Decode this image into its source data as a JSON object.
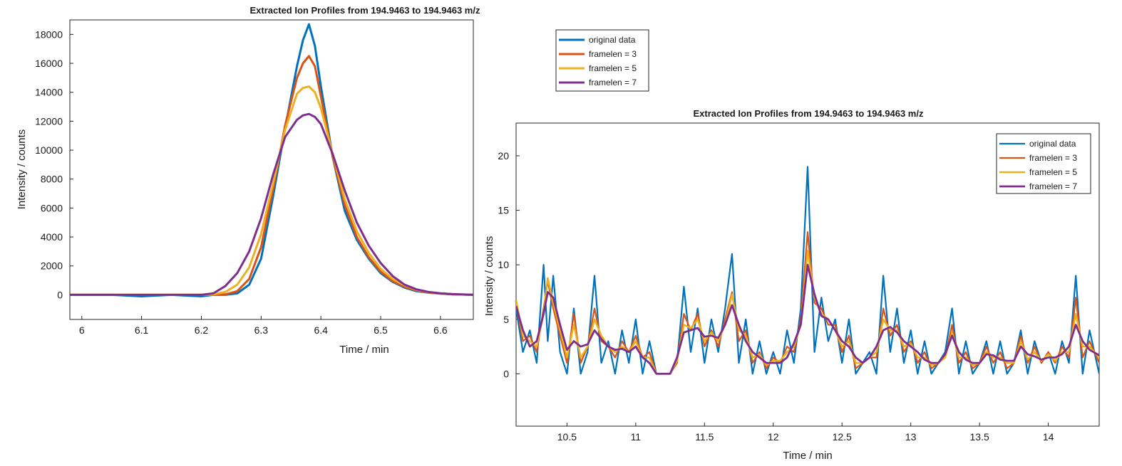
{
  "chart_data": [
    {
      "type": "line",
      "title": "Extracted Ion Profiles from 194.9463 to 194.9463 m/z",
      "xlabel": "Time / min",
      "ylabel": "Intensity / counts",
      "xlim": [
        5.98,
        6.655
      ],
      "ylim": [
        -1700,
        19000
      ],
      "xticks": [
        6,
        6.1,
        6.2,
        6.3,
        6.4,
        6.5,
        6.6
      ],
      "xtick_labels": [
        "6",
        "6.1",
        "6.2",
        "6.3",
        "6.4",
        "6.5",
        "6.6"
      ],
      "yticks": [
        0,
        2000,
        4000,
        6000,
        8000,
        10000,
        12000,
        14000,
        16000,
        18000
      ],
      "ytick_labels": [
        "0",
        "2000",
        "4000",
        "6000",
        "8000",
        "10000",
        "12000",
        "14000",
        "16000",
        "18000"
      ],
      "grid": false,
      "legend_position": "top-right",
      "x": [
        5.98,
        6.0,
        6.05,
        6.1,
        6.15,
        6.2,
        6.22,
        6.24,
        6.26,
        6.28,
        6.3,
        6.32,
        6.34,
        6.36,
        6.37,
        6.38,
        6.39,
        6.4,
        6.42,
        6.44,
        6.46,
        6.48,
        6.5,
        6.52,
        6.54,
        6.56,
        6.58,
        6.6,
        6.62,
        6.655
      ],
      "series": [
        {
          "name": "original data",
          "color": "#0072BD",
          "values": [
            0,
            0,
            0,
            -100,
            0,
            -100,
            0,
            0,
            100,
            700,
            2500,
            6800,
            11500,
            15800,
            17600,
            18700,
            17200,
            14400,
            9500,
            5800,
            3800,
            2500,
            1500,
            900,
            500,
            250,
            150,
            80,
            30,
            0
          ]
        },
        {
          "name": "framelen = 3",
          "color": "#D95319",
          "values": [
            0,
            0,
            0,
            0,
            0,
            0,
            0,
            30,
            250,
            1100,
            3300,
            7300,
            11700,
            15000,
            16000,
            16500,
            15800,
            13700,
            9500,
            6200,
            4000,
            2600,
            1600,
            950,
            550,
            300,
            160,
            90,
            40,
            0
          ]
        },
        {
          "name": "framelen = 5",
          "color": "#EDB120",
          "values": [
            0,
            0,
            0,
            0,
            0,
            0,
            30,
            200,
            700,
            1900,
            4200,
            7700,
            11400,
            13900,
            14300,
            14400,
            14000,
            12900,
            9700,
            6600,
            4400,
            2900,
            1800,
            1100,
            650,
            350,
            180,
            100,
            50,
            0
          ]
        },
        {
          "name": "framelen = 7",
          "color": "#7E2F8E",
          "values": [
            0,
            0,
            0,
            0,
            0,
            0,
            100,
            600,
            1500,
            3000,
            5300,
            8300,
            10900,
            12100,
            12400,
            12500,
            12300,
            11800,
            9700,
            7200,
            5000,
            3400,
            2200,
            1300,
            700,
            380,
            200,
            110,
            50,
            0
          ]
        }
      ]
    },
    {
      "type": "line",
      "title": "Extracted Ion Profiles from 194.9463 to 194.9463 m/z",
      "xlabel": "Time / min",
      "ylabel": "Intensity / counts",
      "xlim": [
        10.13,
        14.37
      ],
      "ylim": [
        -4.8,
        23
      ],
      "xticks": [
        10.5,
        11,
        11.5,
        12,
        12.5,
        13,
        13.5,
        14
      ],
      "xtick_labels": [
        "10.5",
        "11",
        "11.5",
        "12",
        "12.5",
        "13",
        "13.5",
        "14"
      ],
      "yticks": [
        0,
        5,
        10,
        15,
        20
      ],
      "ytick_labels": [
        "0",
        "5",
        "10",
        "15",
        "20"
      ],
      "grid": false,
      "legend_position": "top-right",
      "x": [
        10.13,
        10.18,
        10.23,
        10.28,
        10.33,
        10.36,
        10.4,
        10.45,
        10.5,
        10.55,
        10.6,
        10.65,
        10.7,
        10.75,
        10.8,
        10.85,
        10.9,
        10.95,
        11.0,
        11.05,
        11.1,
        11.15,
        11.2,
        11.25,
        11.3,
        11.35,
        11.4,
        11.45,
        11.5,
        11.55,
        11.6,
        11.65,
        11.7,
        11.75,
        11.8,
        11.85,
        11.9,
        11.95,
        12.0,
        12.05,
        12.1,
        12.15,
        12.2,
        12.25,
        12.3,
        12.35,
        12.4,
        12.45,
        12.5,
        12.55,
        12.6,
        12.65,
        12.7,
        12.75,
        12.8,
        12.85,
        12.9,
        12.95,
        13.0,
        13.05,
        13.1,
        13.15,
        13.2,
        13.25,
        13.3,
        13.35,
        13.4,
        13.45,
        13.5,
        13.55,
        13.6,
        13.65,
        13.7,
        13.75,
        13.8,
        13.85,
        13.9,
        13.95,
        14.0,
        14.05,
        14.1,
        14.15,
        14.2,
        14.25,
        14.3,
        14.37
      ],
      "series": [
        {
          "name": "original data",
          "color": "#0072BD",
          "values": [
            6,
            2,
            4,
            1,
            10,
            3,
            9,
            2,
            0,
            6,
            0,
            2,
            9,
            1,
            3,
            0,
            4,
            1,
            5,
            0,
            3,
            0,
            0,
            0,
            1,
            8,
            2,
            6,
            1,
            5,
            2,
            6,
            11,
            1,
            5,
            0,
            3,
            0,
            2,
            0,
            4,
            1,
            6,
            19,
            2,
            7,
            3,
            5,
            1,
            5,
            0,
            1,
            2,
            0,
            9,
            2,
            6,
            1,
            4,
            0,
            3,
            0,
            1,
            2,
            6,
            0,
            3,
            0,
            1,
            3,
            0,
            3,
            0,
            1,
            4,
            0,
            3,
            1,
            2,
            0,
            3,
            1,
            9,
            0,
            4,
            0
          ]
        },
        {
          "name": "framelen = 3",
          "color": "#D95319",
          "values": [
            6.5,
            3,
            3.5,
            2,
            6,
            8.5,
            6,
            3.5,
            1,
            5.5,
            1,
            2.5,
            6,
            3,
            2.5,
            1.5,
            3,
            2,
            3.5,
            1.5,
            2,
            0,
            0,
            0,
            1,
            5.5,
            4,
            5.5,
            2.5,
            4,
            2.5,
            5,
            7.5,
            3,
            4,
            1,
            2,
            0.5,
            1.5,
            1,
            2.5,
            2,
            5,
            13,
            6.5,
            6,
            4.5,
            4.5,
            2,
            3.5,
            0.5,
            1,
            1.5,
            1.5,
            6,
            3.5,
            4.5,
            2,
            3,
            1,
            2,
            0.5,
            1,
            1.5,
            4.5,
            1,
            2,
            0.5,
            1,
            2.5,
            1,
            2,
            0.5,
            1,
            3.5,
            1,
            2.5,
            1,
            2,
            1,
            2.5,
            1.5,
            7,
            1.5,
            3,
            1
          ]
        },
        {
          "name": "framelen = 5",
          "color": "#EDB120",
          "values": [
            6.8,
            3.5,
            3,
            2.5,
            5.5,
            8.8,
            6.5,
            4,
            1.5,
            4.5,
            1.5,
            2.5,
            5,
            3.5,
            2.5,
            2,
            2.5,
            2,
            3,
            1.5,
            1.5,
            0,
            0,
            0,
            1.2,
            4.5,
            4.2,
            5,
            3,
            3.8,
            3,
            4.5,
            7.3,
            4,
            3.5,
            1.5,
            1.8,
            0.8,
            1.2,
            1.2,
            2,
            2.5,
            4.5,
            11.3,
            7,
            5.5,
            5,
            4,
            2.5,
            3,
            1,
            1,
            1.5,
            2,
            5,
            4,
            4,
            2.5,
            2.8,
            1.5,
            1.5,
            0.8,
            1,
            1.5,
            3.8,
            1.5,
            1.5,
            0.8,
            1,
            2,
            1.5,
            1.5,
            1,
            1,
            3,
            1.3,
            2,
            1.2,
            1.8,
            1.2,
            2,
            2,
            5.5,
            2.5,
            2.5,
            1.5
          ]
        },
        {
          "name": "framelen = 7",
          "color": "#7E2F8E",
          "values": [
            6.2,
            4,
            2.5,
            3,
            5.5,
            7.5,
            7,
            4.5,
            2.2,
            3,
            2.5,
            2.7,
            4,
            3.2,
            2.5,
            2.2,
            2.3,
            2,
            2.5,
            1.5,
            1,
            0,
            0,
            0,
            1.5,
            3.8,
            4,
            4.2,
            3.4,
            3.5,
            3.3,
            4.5,
            6.3,
            4.5,
            3,
            2,
            1.5,
            1,
            1,
            1,
            1.5,
            2.8,
            4.5,
            10,
            7.3,
            5.3,
            5,
            4,
            3,
            2.5,
            1.5,
            1,
            1.5,
            2.5,
            4,
            4.3,
            3.8,
            3,
            2.5,
            2,
            1.3,
            1,
            1,
            1.8,
            3.5,
            2,
            1.3,
            1,
            1,
            1.8,
            1.7,
            1.3,
            1.2,
            1.2,
            2.5,
            1.8,
            1.6,
            1.3,
            1.5,
            1.5,
            1.8,
            2.5,
            4.5,
            3,
            2.2,
            1.7
          ]
        }
      ]
    }
  ]
}
